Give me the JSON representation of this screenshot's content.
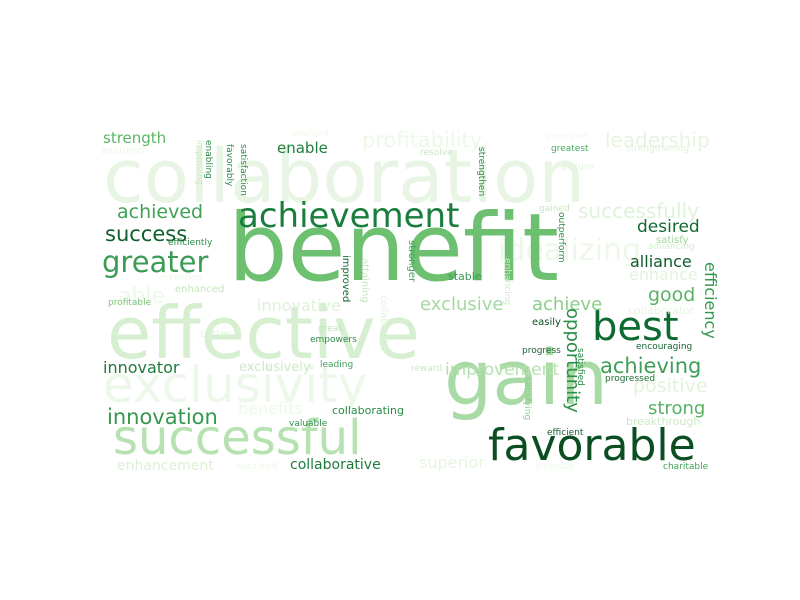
{
  "words": [
    {
      "text": "collaboration",
      "color": "#e8f5e4"
    },
    {
      "text": "benefit",
      "color": "#6cc070"
    },
    {
      "text": "effective",
      "color": "#d6efd0"
    },
    {
      "text": "exclusivity",
      "color": "#eef8ea"
    },
    {
      "text": "gain",
      "color": "#a8daa5"
    },
    {
      "text": "successful",
      "color": "#b6e1b0"
    },
    {
      "text": "favorable",
      "color": "#0a4e22"
    },
    {
      "text": "achievement",
      "color": "#197d3e"
    },
    {
      "text": "best",
      "color": "#0d6a30"
    },
    {
      "text": "profitability",
      "color": "#edf8e9"
    },
    {
      "text": "leadership",
      "color": "#e6f4e1"
    },
    {
      "text": "strength",
      "color": "#5cb567"
    },
    {
      "text": "achieved",
      "color": "#3fa257"
    },
    {
      "text": "success",
      "color": "#0f5e2c"
    },
    {
      "text": "greater",
      "color": "#3a9c55"
    },
    {
      "text": "successfully",
      "color": "#dff2da"
    },
    {
      "text": "desired",
      "color": "#126a32"
    },
    {
      "text": "alliance",
      "color": "#0c5a29"
    },
    {
      "text": "enhance",
      "color": "#e3f3de"
    },
    {
      "text": "good",
      "color": "#59b266"
    },
    {
      "text": "efficiency",
      "color": "#35984f"
    },
    {
      "text": "exclusive",
      "color": "#a4d8a0"
    },
    {
      "text": "achieve",
      "color": "#8ccd89"
    },
    {
      "text": "achieving",
      "color": "#3e9f57"
    },
    {
      "text": "improvement",
      "color": "#b5e0ae"
    },
    {
      "text": "opportunity",
      "color": "#2e8f49"
    },
    {
      "text": "positive",
      "color": "#e3f3de"
    },
    {
      "text": "strong",
      "color": "#57b063"
    },
    {
      "text": "breakthrough",
      "color": "#cde9c7"
    },
    {
      "text": "innovation",
      "color": "#35984f"
    },
    {
      "text": "innovator",
      "color": "#207a3c"
    },
    {
      "text": "innovative",
      "color": "#def1d9"
    },
    {
      "text": "exclusively",
      "color": "#cbe8c5"
    },
    {
      "text": "enhancement",
      "color": "#dcf0d6"
    },
    {
      "text": "collaborative",
      "color": "#1e7b3c"
    },
    {
      "text": "superior",
      "color": "#e6f5e1"
    },
    {
      "text": "enable",
      "color": "#1f7e3d"
    },
    {
      "text": "able",
      "color": "#eef8ea"
    },
    {
      "text": "enhanced",
      "color": "#c4e6bd"
    },
    {
      "text": "collaborator",
      "color": "#e8f5e3"
    },
    {
      "text": "collaborating",
      "color": "#2b8b46"
    },
    {
      "text": "assured",
      "color": "#eef8ea"
    },
    {
      "text": "enabled",
      "color": "#eef8ea"
    },
    {
      "text": "resolve",
      "color": "#c9e7c2"
    },
    {
      "text": "greatest",
      "color": "#4aab5e"
    },
    {
      "text": "strengthening",
      "color": "#dff2da"
    },
    {
      "text": "improve",
      "color": "#eef8ea"
    },
    {
      "text": "assure",
      "color": "#e2f3dd"
    },
    {
      "text": "gained",
      "color": "#c9e7c2"
    },
    {
      "text": "satisfy",
      "color": "#a2d69d"
    },
    {
      "text": "efficiently",
      "color": "#2a8a45"
    },
    {
      "text": "invention",
      "color": "#eef8ea"
    },
    {
      "text": "profitable",
      "color": "#7cc57b"
    },
    {
      "text": "stable",
      "color": "#3b9c54"
    },
    {
      "text": "easily",
      "color": "#104f27"
    },
    {
      "text": "progress",
      "color": "#175f31"
    },
    {
      "text": "great",
      "color": "#bfe4b8"
    },
    {
      "text": "empowers",
      "color": "#2e8b49"
    },
    {
      "text": "leading",
      "color": "#41a159"
    },
    {
      "text": "reward",
      "color": "#c8e8c2"
    },
    {
      "text": "valuable",
      "color": "#2e8b49"
    },
    {
      "text": "succeed",
      "color": "#eef8ea"
    },
    {
      "text": "efficient",
      "color": "#175f31"
    },
    {
      "text": "innovate",
      "color": "#eef8ea"
    },
    {
      "text": "charitable",
      "color": "#41a159"
    },
    {
      "text": "encouraging",
      "color": "#126232"
    },
    {
      "text": "advancing",
      "color": "#d4eecf"
    },
    {
      "text": "progressed",
      "color": "#1c6f36"
    },
    {
      "text": "benefits",
      "color": "#eef8ea"
    },
    {
      "text": "improving",
      "color": "#cde9c7"
    },
    {
      "text": "enabling",
      "color": "#2e8b49"
    },
    {
      "text": "favorably",
      "color": "#2e8b49"
    },
    {
      "text": "satisfaction",
      "color": "#2e8b49"
    },
    {
      "text": "strengthen",
      "color": "#2e8b49"
    },
    {
      "text": "stronger",
      "color": "#46a65c"
    },
    {
      "text": "improved",
      "color": "#146a33"
    },
    {
      "text": "attaining",
      "color": "#c7e7c1"
    },
    {
      "text": "collaborate",
      "color": "#e2f3dd"
    },
    {
      "text": "enhancing",
      "color": "#cfeac9"
    },
    {
      "text": "outperform",
      "color": "#2e8b49"
    },
    {
      "text": "satisfying",
      "color": "#8ccd89"
    },
    {
      "text": "satisfied",
      "color": "#2b8b46"
    },
    {
      "text": "better",
      "color": "#e6f4e1"
    },
    {
      "text": "idealizing",
      "color": "#eef8ea"
    }
  ]
}
